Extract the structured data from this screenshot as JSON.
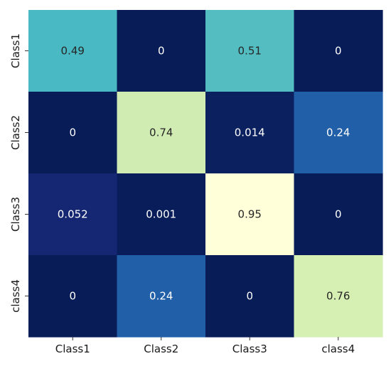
{
  "chart_data": {
    "type": "heatmap",
    "title": "",
    "xlabel": "",
    "ylabel": "",
    "x_categories": [
      "Class1",
      "Class2",
      "Class3",
      "class4"
    ],
    "y_categories": [
      "Class1",
      "Class2",
      "Class3",
      "class4"
    ],
    "values": [
      [
        0.49,
        0,
        0.51,
        0
      ],
      [
        0,
        0.74,
        0.014,
        0.24
      ],
      [
        0.052,
        0.001,
        0.95,
        0
      ],
      [
        0,
        0.24,
        0,
        0.76
      ]
    ],
    "labels": [
      [
        "0.49",
        "0",
        "0.51",
        "0"
      ],
      [
        "0",
        "0.74",
        "0.014",
        "0.24"
      ],
      [
        "0.052",
        "0.001",
        "0.95",
        "0"
      ],
      [
        "0",
        "0.24",
        "0",
        "0.76"
      ]
    ],
    "colormap": "YlGnBu",
    "value_range": [
      0,
      0.95
    ],
    "colorbar": false,
    "grid": false
  }
}
